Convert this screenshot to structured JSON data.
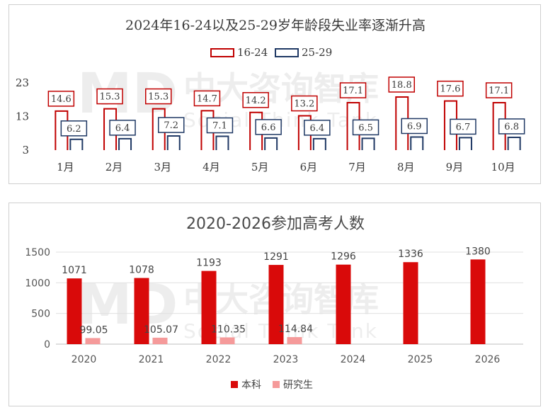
{
  "watermark": {
    "logo": "MD",
    "name": "中大咨询智库",
    "sub": "Social Think Tank"
  },
  "chart_data": [
    {
      "type": "bar",
      "title": "2024年16-24以及25-29岁年龄段失业率逐渐升高",
      "categories": [
        "1月",
        "2月",
        "3月",
        "4月",
        "5月",
        "6月",
        "7月",
        "8月",
        "9月",
        "10月"
      ],
      "series": [
        {
          "name": "16-24",
          "color": "#c00000",
          "values": [
            14.6,
            15.3,
            15.3,
            14.7,
            14.2,
            13.2,
            17.1,
            18.8,
            17.6,
            17.1
          ]
        },
        {
          "name": "25-29",
          "color": "#1f3864",
          "values": [
            6.2,
            6.4,
            7.2,
            7.1,
            6.6,
            6.4,
            6.5,
            6.9,
            6.7,
            6.8
          ]
        }
      ],
      "yticks": [
        3,
        13,
        23
      ],
      "ylim": [
        3,
        23
      ],
      "legend": "top-center",
      "grid": false
    },
    {
      "type": "bar",
      "title": "2020-2026参加高考人数",
      "categories": [
        "2020",
        "2021",
        "2022",
        "2023",
        "2024",
        "2025",
        "2026"
      ],
      "series": [
        {
          "name": "本科",
          "color": "#d90a0a",
          "values": [
            1071,
            1078,
            1193,
            1291,
            1296,
            1336,
            1380
          ]
        },
        {
          "name": "研究生",
          "color": "#f59a9a",
          "values": [
            99.05,
            105.07,
            110.35,
            114.84,
            null,
            null,
            null
          ]
        }
      ],
      "yticks": [
        0,
        500,
        1000,
        1500
      ],
      "ylim": [
        0,
        1500
      ],
      "legend": "bottom-center",
      "grid": true
    }
  ]
}
